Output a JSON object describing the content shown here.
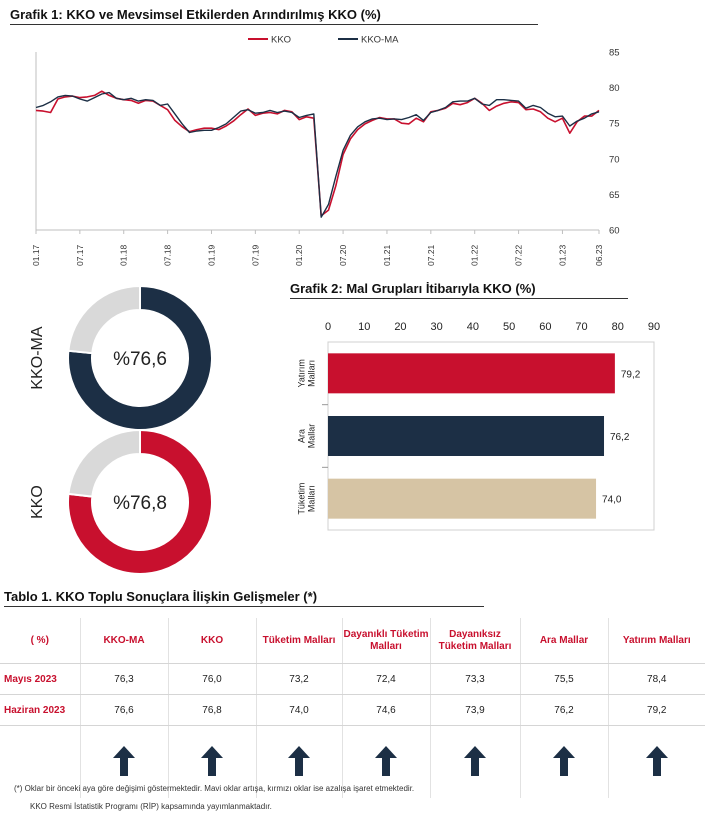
{
  "colors": {
    "kko": "#c8102e",
    "kko_ma": "#1c2f45",
    "donut_rest": "#d9d9d9",
    "tuketim": "#d6c4a4",
    "arrow": "#1c2f45",
    "grid": "#bfbfbf"
  },
  "chart1": {
    "title": "Grafik 1: KKO ve Mevsimsel Etkilerden Arındırılmış KKO (%)",
    "legend": [
      "KKO",
      "KKO-MA"
    ]
  },
  "chart2": {
    "title": "Grafik 2: Mal Grupları İtibarıyla KKO (%)"
  },
  "donuts": [
    {
      "side_label": "KKO-MA",
      "center_text": "%76,6"
    },
    {
      "side_label": "KKO",
      "center_text": "%76,8"
    }
  ],
  "table": {
    "title": "Tablo 1. KKO Toplu Sonuçlara İlişkin Gelişmeler (*)",
    "headers": [
      "( %)",
      "KKO-MA",
      "KKO",
      "Tüketim Malları",
      "Dayanıklı Tüketim Malları",
      "Dayanıksız Tüketim Malları",
      "Ara Mallar",
      "Yatırım Malları"
    ],
    "rows": [
      {
        "label": "Mayıs 2023",
        "values": [
          "76,3",
          "76,0",
          "73,2",
          "72,4",
          "73,3",
          "75,5",
          "78,4"
        ]
      },
      {
        "label": "Haziran 2023",
        "values": [
          "76,6",
          "76,8",
          "74,0",
          "74,6",
          "73,9",
          "76,2",
          "79,2"
        ]
      }
    ],
    "arrows": [
      "up",
      "up",
      "up",
      "up",
      "up",
      "up",
      "up"
    ]
  },
  "footnotes": [
    "(*) Oklar bir önceki aya göre değişimi göstermektedir. Mavi oklar artışa, kırmızı oklar ise azalışa işaret etmektedir.",
    "KKO Resmi İstatistik Programı (RİP) kapsamında yayımlanmaktadır."
  ],
  "chart_data": [
    {
      "type": "line",
      "title": "Grafik 1: KKO ve Mevsimsel Etkilerden Arındırılmış KKO (%)",
      "xlabel": "",
      "ylabel": "",
      "x_tick_labels": [
        "01.17",
        "07.17",
        "01.18",
        "07.18",
        "01.19",
        "07.19",
        "01.20",
        "07.20",
        "01.21",
        "07.21",
        "01.22",
        "07.22",
        "01.23",
        "06.23"
      ],
      "ylim": [
        60,
        85
      ],
      "y_ticks": [
        60,
        65,
        70,
        75,
        80,
        85
      ],
      "y_axis_side": "right",
      "legend_position": "top",
      "grid": false,
      "x_start": "2017-01",
      "x_end": "2023-06",
      "series": [
        {
          "name": "KKO",
          "values": [
            76.8,
            76.7,
            76.5,
            78.4,
            78.7,
            78.8,
            78.6,
            78.7,
            78.9,
            79.5,
            78.9,
            78.5,
            78.3,
            78.2,
            77.8,
            78.2,
            78.1,
            77.5,
            76.9,
            75.4,
            74.5,
            73.8,
            74.1,
            74.3,
            74.3,
            74.1,
            74.6,
            75.3,
            76.2,
            77.0,
            76.1,
            76.4,
            76.5,
            76.3,
            76.8,
            76.6,
            75.5,
            75.9,
            75.7,
            62.0,
            62.8,
            66.2,
            70.6,
            72.8,
            74.1,
            74.9,
            75.4,
            75.8,
            75.6,
            75.6,
            75.0,
            74.9,
            75.7,
            75.2,
            76.6,
            76.8,
            77.1,
            77.8,
            77.6,
            77.9,
            78.5,
            77.8,
            76.8,
            77.4,
            77.8,
            78.0,
            77.9,
            76.9,
            77.0,
            76.6,
            75.7,
            75.2,
            75.7,
            73.6,
            75.2,
            76.0,
            76.0,
            76.8
          ]
        },
        {
          "name": "KKO-MA",
          "values": [
            77.2,
            77.5,
            78.0,
            78.7,
            78.9,
            78.8,
            78.4,
            78.1,
            78.6,
            79.1,
            79.3,
            78.5,
            78.3,
            78.5,
            78.1,
            78.3,
            78.2,
            77.5,
            77.7,
            76.3,
            74.9,
            73.7,
            73.9,
            74.0,
            74.0,
            74.4,
            74.9,
            75.8,
            76.7,
            76.9,
            76.4,
            76.5,
            76.8,
            76.5,
            76.7,
            76.5,
            75.8,
            76.1,
            76.3,
            61.8,
            63.6,
            67.5,
            71.2,
            73.3,
            74.5,
            75.2,
            75.6,
            75.7,
            75.5,
            75.6,
            75.5,
            75.8,
            76.2,
            75.4,
            76.5,
            76.8,
            77.2,
            78.0,
            78.1,
            78.1,
            78.5,
            77.7,
            77.5,
            78.3,
            78.3,
            78.2,
            78.1,
            77.1,
            77.5,
            77.2,
            76.4,
            75.9,
            76.0,
            74.6,
            75.3,
            75.7,
            76.3,
            76.6
          ]
        }
      ]
    },
    {
      "type": "bar",
      "orientation": "horizontal",
      "title": "Grafik 2: Mal Grupları İtibarıyla KKO (%)",
      "categories": [
        "Yatırım Malları",
        "Ara Mallar",
        "Tüketim Malları"
      ],
      "values": [
        79.2,
        76.2,
        74.0
      ],
      "value_labels": [
        "79,2",
        "76,2",
        "74,0"
      ],
      "xlim": [
        0,
        90
      ],
      "x_ticks": [
        0,
        10,
        20,
        30,
        40,
        50,
        60,
        70,
        80,
        90
      ],
      "x_axis_side": "top",
      "grid": false
    },
    {
      "type": "pie",
      "subtype": "donut",
      "label": "KKO-MA",
      "values": [
        76.6,
        23.4
      ],
      "center_text": "%76,6"
    },
    {
      "type": "pie",
      "subtype": "donut",
      "label": "KKO",
      "values": [
        76.8,
        23.2
      ],
      "center_text": "%76,8"
    }
  ]
}
